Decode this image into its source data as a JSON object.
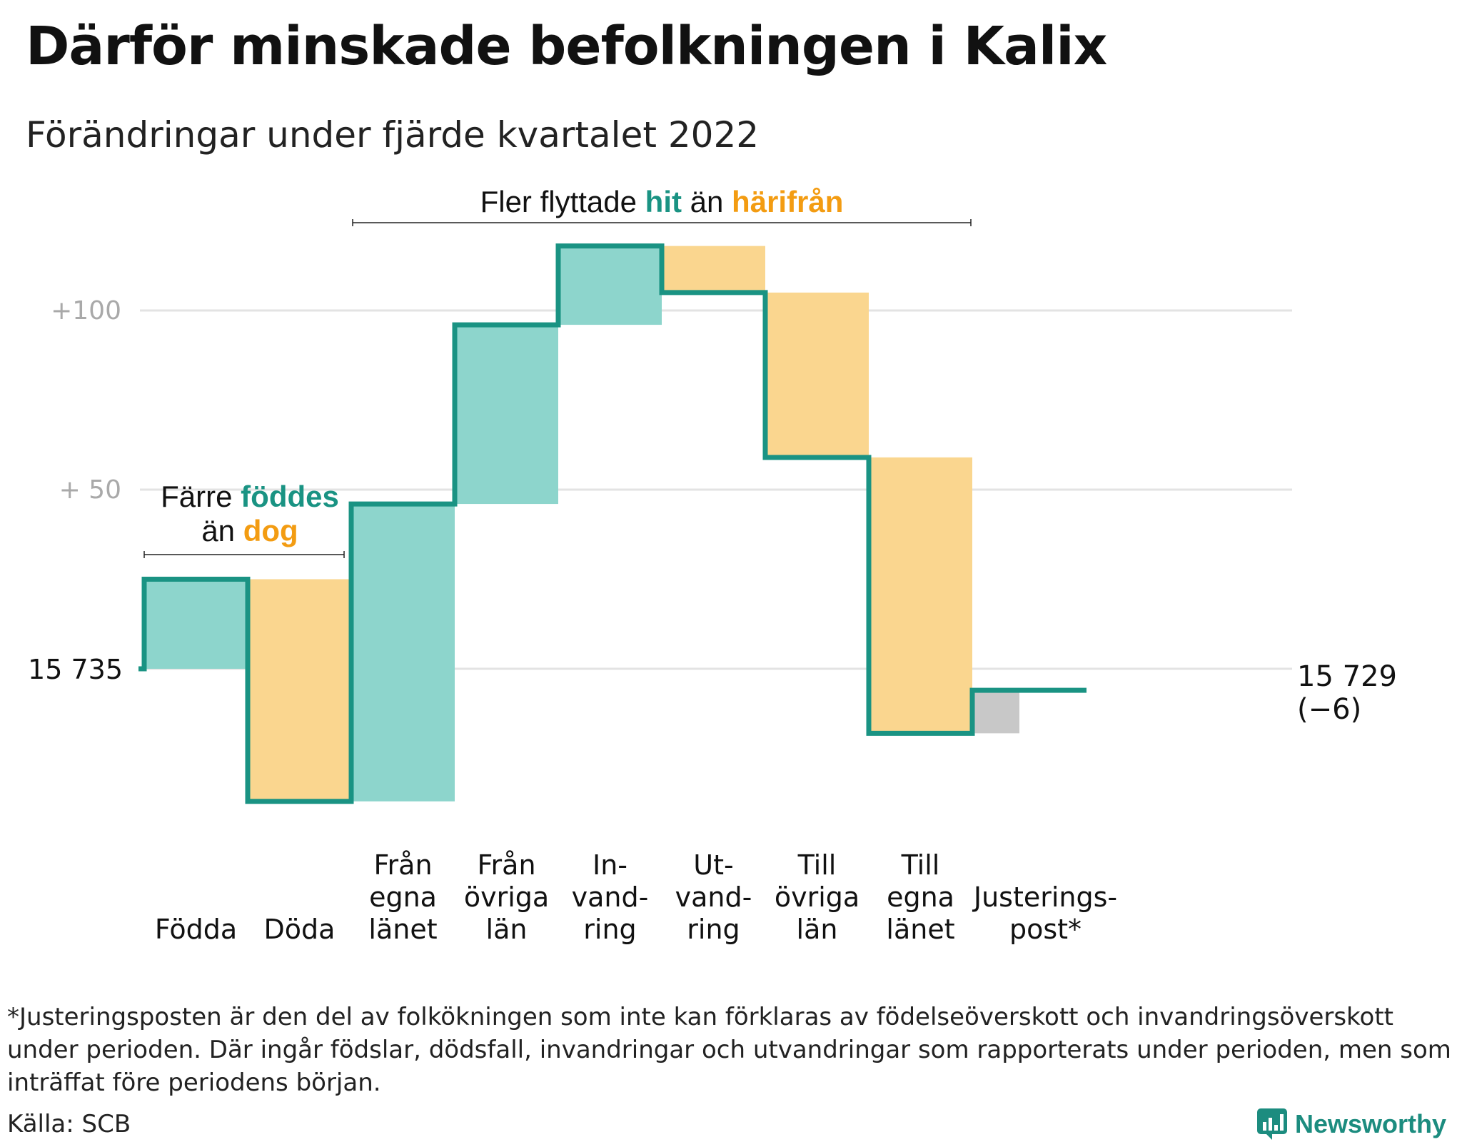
{
  "header": {
    "title": "Därför minskade befolkningen i Kalix",
    "subtitle": "Förändringar under fjärde kvartalet 2022"
  },
  "colors": {
    "teal_line": "#1a9383",
    "teal_fill": "#8dd5cc",
    "orange_fill": "#fad68f",
    "orange_text": "#f39c12",
    "gray_fill": "#c8c8c8",
    "grid": "#e3e3e3",
    "tick_text": "#a9a9a9"
  },
  "chart_data": {
    "type": "waterfall",
    "start_value": 15735,
    "start_label": "15 735",
    "end_label": "15 729",
    "end_change_label": "(−6)",
    "y_ticks": [
      {
        "value": 100,
        "label": "+100"
      },
      {
        "value": 50,
        "label": "+ 50"
      }
    ],
    "grid": true,
    "steps": [
      {
        "name": "Födda",
        "label_lines": [
          "Födda"
        ],
        "change": 25,
        "kind": "in"
      },
      {
        "name": "Döda",
        "label_lines": [
          "Döda"
        ],
        "change": -62,
        "kind": "out"
      },
      {
        "name": "Från egna länet",
        "label_lines": [
          "Från",
          "egna",
          "länet"
        ],
        "change": 83,
        "kind": "in"
      },
      {
        "name": "Från övriga län",
        "label_lines": [
          "Från",
          "övriga",
          "län"
        ],
        "change": 50,
        "kind": "in"
      },
      {
        "name": "Invandring",
        "label_lines": [
          "In-",
          "vand-",
          "ring"
        ],
        "change": 22,
        "kind": "in"
      },
      {
        "name": "Utvandring",
        "label_lines": [
          "Ut-",
          "vand-",
          "ring"
        ],
        "change": -13,
        "kind": "out"
      },
      {
        "name": "Till övriga län",
        "label_lines": [
          "Till",
          "övriga",
          "län"
        ],
        "change": -46,
        "kind": "out"
      },
      {
        "name": "Till egna länet",
        "label_lines": [
          "Till",
          "egna",
          "länet"
        ],
        "change": -77,
        "kind": "out"
      },
      {
        "name": "Justeringspost*",
        "label_lines": [
          "Justerings-",
          "post*"
        ],
        "change": 12,
        "kind": "adjust"
      }
    ],
    "annotations": {
      "births": {
        "line1": "Färre",
        "line1_highlight": "föddes",
        "line2": "än",
        "line2_highlight": "dog"
      },
      "migration": {
        "text1": "Fler flyttade",
        "highlight1": "hit",
        "text2": "än",
        "highlight2": "härifrån"
      }
    }
  },
  "footnote": "*Justeringsposten är den del av folkökningen som inte kan förklaras av födelseöverskott och invandringsöverskott under perioden. Där ingår födslar, dödsfall, invandringar och utvandringar som rapporterats under perioden, men som inträffat före periodens början.",
  "source": "Källa: SCB",
  "brand": "Newsworthy"
}
